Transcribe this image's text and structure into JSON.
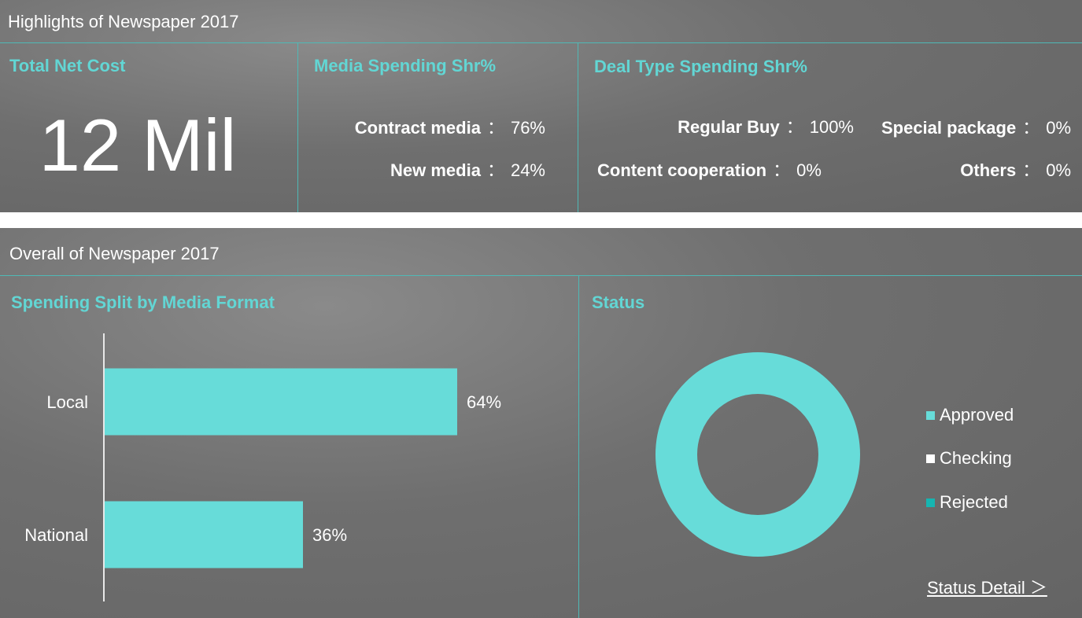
{
  "highlights": {
    "header": "Highlights of Newspaper 2017",
    "total_net_cost": {
      "title": "Total Net Cost",
      "value": "12 Mil"
    },
    "media_spending": {
      "title": "Media Spending Shr%",
      "rows": [
        {
          "label": "Contract media",
          "sep": "：",
          "value": "76%"
        },
        {
          "label": "New media",
          "sep": "：",
          "value": "24%"
        }
      ]
    },
    "deal_type_spending": {
      "title": "Deal Type Spending Shr%",
      "rows": [
        {
          "label": "Regular Buy",
          "sep": "：",
          "value": "100%"
        },
        {
          "label": "Special package",
          "sep": "：",
          "value": "0%"
        },
        {
          "label": "Content cooperation",
          "sep": "：",
          "value": "0%"
        },
        {
          "label": "Others",
          "sep": "：",
          "value": "0%"
        }
      ]
    }
  },
  "overall": {
    "header": "Overall of Newspaper 2017",
    "status_detail_link": "Status Detail ＞"
  },
  "colors": {
    "accent": "#62d6d4",
    "bar": "#67dcd9",
    "approved": "#67dcd9",
    "checking": "#ffffff",
    "rejected": "#16b5b1"
  },
  "chart_data": [
    {
      "type": "bar",
      "orientation": "horizontal",
      "title": "Spending Split by Media Format",
      "categories": [
        "Local",
        "National"
      ],
      "values": [
        64,
        36
      ],
      "value_labels": [
        "64%",
        "36%"
      ],
      "xlim": [
        0,
        100
      ],
      "grid": false
    },
    {
      "type": "pie",
      "variant": "donut",
      "title": "Status",
      "labels": [
        "Approved",
        "Checking",
        "Rejected"
      ],
      "values": [
        100,
        0,
        0
      ],
      "colors": [
        "#67dcd9",
        "#ffffff",
        "#16b5b1"
      ],
      "legend": "right"
    }
  ]
}
